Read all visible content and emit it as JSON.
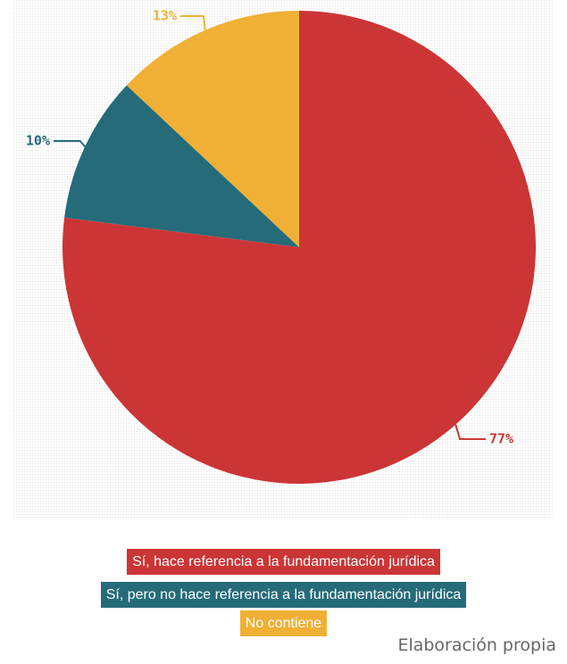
{
  "chart_data": {
    "type": "pie",
    "categories": [
      "Sí, hace referencia a la fundamentación jurídica",
      "Sí, pero no hace referencia a la fundamentación jurídica",
      "No contiene"
    ],
    "values": [
      77,
      10,
      13
    ],
    "value_labels": [
      "77%",
      "10%",
      "13%"
    ],
    "colors": [
      "#cc3535",
      "#256b7a",
      "#f0b035"
    ],
    "source": "Elaboración propia"
  }
}
